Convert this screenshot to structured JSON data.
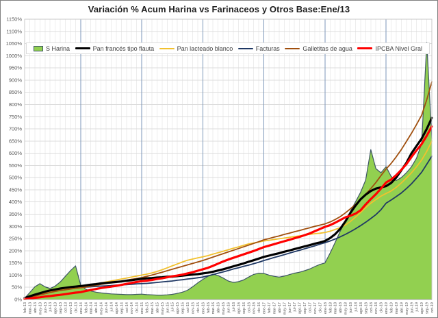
{
  "title": "Variación % Acum Harina vs Farinaceos y Otros Base:Ene/13",
  "chart_data": {
    "type": "area",
    "subtype": "cumulative % variation, area + lines",
    "title": "Variación % Acum Harina vs Farinaceos y Otros Base:Ene/13",
    "xlabel": "",
    "ylabel": "",
    "ylim": [
      0,
      1150
    ],
    "ytick_step": 50,
    "yticks": [
      "0%",
      "50%",
      "100%",
      "150%",
      "200%",
      "250%",
      "300%",
      "350%",
      "400%",
      "450%",
      "500%",
      "550%",
      "600%",
      "650%",
      "700%",
      "750%",
      "800%",
      "850%",
      "900%",
      "950%",
      "1000%",
      "1050%",
      "1100%",
      "1150%"
    ],
    "grid": true,
    "legend_position": "top",
    "year_tick_indices": [
      11,
      23,
      35,
      47,
      59,
      71
    ],
    "draw_order": [
      0,
      3,
      2,
      4,
      1,
      5
    ],
    "x": [
      "feb-13",
      "mar-13",
      "abr-13",
      "may-13",
      "jun-13",
      "jul-13",
      "ago-13",
      "sep-13",
      "oct-13",
      "nov-13",
      "dic-13",
      "ene-14",
      "feb-14",
      "mar-14",
      "abr-14",
      "may-14",
      "jun-14",
      "jul-14",
      "ago-14",
      "sep-14",
      "oct-14",
      "nov-14",
      "dic-14",
      "ene-15",
      "feb-15",
      "mar-15",
      "abr-15",
      "may-15",
      "jun-15",
      "jul-15",
      "ago-15",
      "sep-15",
      "oct-15",
      "nov-15",
      "dic-15",
      "ene-16",
      "feb-16",
      "mar-16",
      "abr-16",
      "may-16",
      "jun-16",
      "jul-16",
      "ago-16",
      "sep-16",
      "oct-16",
      "nov-16",
      "dic-16",
      "ene-17",
      "feb-17",
      "mar-17",
      "abr-17",
      "may-17",
      "jun-17",
      "jul-17",
      "ago-17",
      "sep-17",
      "oct-17",
      "nov-17",
      "dic-17",
      "ene-18",
      "feb-18",
      "mar-18",
      "abr-18",
      "may-18",
      "jun-18",
      "jul-18",
      "ago-18",
      "sep-18",
      "oct-18",
      "nov-18",
      "dic-18",
      "ene-19",
      "feb-19",
      "mar-19",
      "abr-19",
      "may-19",
      "jun-19",
      "jul-19",
      "ago-19",
      "sep-19",
      "oct-19"
    ],
    "series": [
      {
        "name": "S Harina",
        "type": "area",
        "color": "#92D050",
        "border": "#3D5665",
        "width": 1.2,
        "values": [
          5,
          28,
          52,
          65,
          52,
          45,
          55,
          72,
          95,
          118,
          138,
          60,
          42,
          35,
          30,
          27,
          25,
          23,
          22,
          21,
          20,
          20,
          21,
          22,
          20,
          19,
          18,
          18,
          19,
          21,
          25,
          30,
          38,
          52,
          68,
          82,
          95,
          104,
          98,
          88,
          76,
          70,
          73,
          80,
          92,
          103,
          108,
          107,
          100,
          95,
          92,
          96,
          102,
          108,
          112,
          118,
          125,
          135,
          144,
          150,
          190,
          234,
          280,
          320,
          362,
          400,
          440,
          490,
          615,
          537,
          520,
          545,
          505,
          488,
          500,
          520,
          545,
          580,
          640,
          1055,
          660
        ]
      },
      {
        "name": "Pan francés tipo flauta",
        "type": "line",
        "color": "#000000",
        "width": 3.2,
        "values": [
          6,
          13,
          20,
          26,
          32,
          37,
          41,
          45,
          48,
          51,
          53,
          55,
          58,
          61,
          63,
          66,
          68,
          70,
          72,
          74,
          77,
          79,
          82,
          85,
          87,
          88,
          90,
          91,
          93,
          94,
          96,
          98,
          100,
          102,
          104,
          107,
          110,
          114,
          119,
          124,
          130,
          136,
          142,
          148,
          155,
          161,
          168,
          175,
          180,
          185,
          190,
          196,
          201,
          207,
          212,
          218,
          223,
          229,
          234,
          240,
          252,
          268,
          290,
          320,
          355,
          385,
          411,
          430,
          445,
          455,
          460,
          465,
          478,
          500,
          530,
          560,
          600,
          630,
          660,
          700,
          745
        ]
      },
      {
        "name": "Pan lacteado blanco",
        "type": "line",
        "color": "#F2C12E",
        "width": 1.8,
        "values": [
          5,
          11,
          17,
          23,
          28,
          33,
          37,
          41,
          44,
          47,
          50,
          52,
          56,
          60,
          64,
          68,
          72,
          76,
          80,
          84,
          88,
          92,
          96,
          100,
          104,
          109,
          115,
          122,
          130,
          138,
          146,
          154,
          161,
          166,
          171,
          175,
          180,
          186,
          192,
          198,
          204,
          210,
          216,
          222,
          228,
          232,
          236,
          240,
          243,
          246,
          249,
          252,
          255,
          258,
          261,
          264,
          267,
          270,
          272,
          275,
          280,
          287,
          295,
          306,
          320,
          338,
          357,
          377,
          395,
          410,
          424,
          435,
          445,
          460,
          478,
          498,
          520,
          545,
          572,
          608,
          650
        ]
      },
      {
        "name": "Facturas",
        "type": "line",
        "color": "#1F3864",
        "width": 1.8,
        "values": [
          5,
          11,
          17,
          23,
          28,
          33,
          37,
          40,
          43,
          46,
          48,
          50,
          51,
          52,
          54,
          55,
          56,
          57,
          59,
          60,
          61,
          62,
          64,
          65,
          66,
          68,
          70,
          72,
          74,
          76,
          79,
          81,
          84,
          86,
          89,
          92,
          97,
          102,
          108,
          113,
          119,
          125,
          130,
          136,
          141,
          147,
          153,
          160,
          166,
          172,
          178,
          184,
          190,
          196,
          202,
          208,
          214,
          220,
          227,
          233,
          240,
          248,
          257,
          267,
          278,
          290,
          303,
          317,
          332,
          348,
          368,
          395,
          408,
          422,
          437,
          455,
          475,
          498,
          522,
          555,
          588
        ]
      },
      {
        "name": "Galletitas de agua",
        "type": "line",
        "color": "#A04F0E",
        "width": 1.8,
        "values": [
          4,
          9,
          14,
          19,
          24,
          29,
          33,
          37,
          40,
          43,
          46,
          48,
          51,
          55,
          58,
          62,
          65,
          69,
          72,
          76,
          79,
          83,
          86,
          90,
          95,
          100,
          106,
          112,
          118,
          124,
          130,
          136,
          142,
          148,
          154,
          160,
          167,
          174,
          181,
          188,
          195,
          202,
          209,
          216,
          223,
          230,
          237,
          245,
          250,
          256,
          261,
          267,
          272,
          278,
          283,
          289,
          294,
          300,
          305,
          310,
          318,
          328,
          340,
          355,
          372,
          390,
          410,
          432,
          455,
          480,
          508,
          535,
          558,
          585,
          615,
          648,
          682,
          718,
          756,
          820,
          893
        ]
      },
      {
        "name": "IPCBA Nivel Gral",
        "type": "line",
        "color": "#FF0000",
        "width": 3.2,
        "values": [
          2,
          4,
          7,
          9,
          12,
          14,
          17,
          19,
          22,
          25,
          28,
          30,
          35,
          39,
          43,
          47,
          50,
          53,
          56,
          60,
          64,
          68,
          72,
          75,
          77,
          80,
          84,
          87,
          91,
          95,
          98,
          102,
          107,
          112,
          118,
          124,
          130,
          138,
          147,
          156,
          164,
          171,
          178,
          185,
          192,
          199,
          207,
          215,
          221,
          227,
          233,
          239,
          245,
          251,
          257,
          264,
          271,
          280,
          289,
          298,
          305,
          315,
          326,
          337,
          344,
          352,
          366,
          390,
          412,
          432,
          455,
          480,
          492,
          510,
          532,
          555,
          585,
          612,
          638,
          672,
          710
        ]
      }
    ],
    "colors": {
      "grid_minor_vertical": "#ededed",
      "grid_horizontal": "#dcdcdc",
      "grid_year_vertical": "#7b96b8",
      "axis_line": "#a6a6a6",
      "plot_border": "#c9c9c9",
      "tick_label": "#595959"
    }
  }
}
